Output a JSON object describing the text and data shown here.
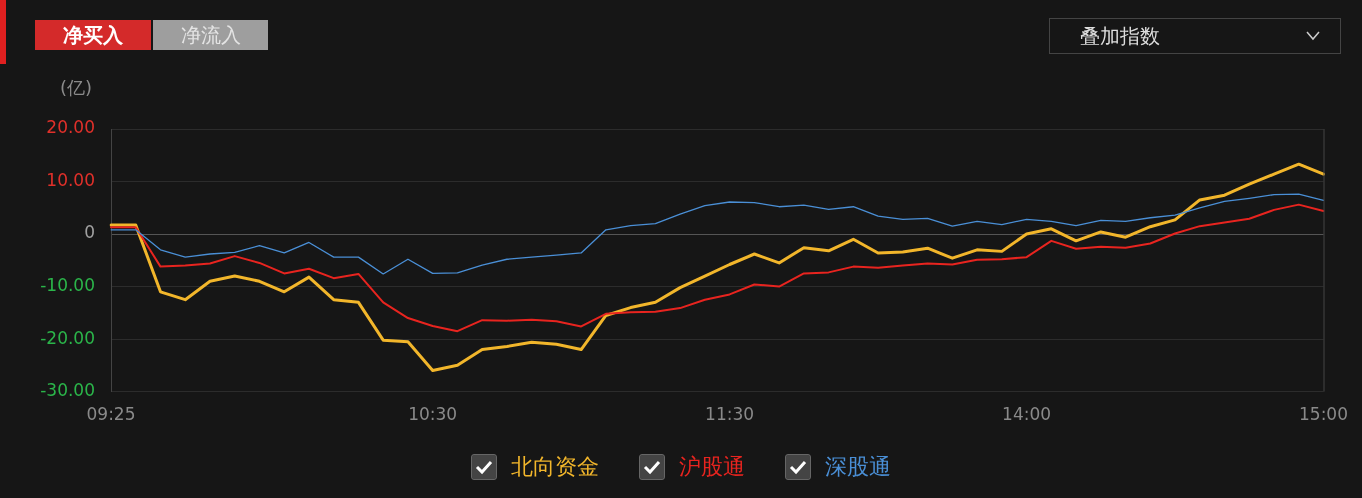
{
  "chart_data": {
    "type": "line",
    "ylabel": "(亿)",
    "annotations": [
      "净买入",
      "净流入",
      "叠加指数"
    ],
    "categories": [
      "09:25",
      null,
      null,
      null,
      null,
      null,
      null,
      null,
      null,
      null,
      null,
      null,
      null,
      "10:30",
      null,
      null,
      null,
      null,
      null,
      null,
      null,
      null,
      null,
      null,
      null,
      "11:30",
      null,
      null,
      null,
      null,
      null,
      null,
      null,
      null,
      null,
      null,
      null,
      "14:00",
      null,
      null,
      null,
      null,
      null,
      null,
      null,
      null,
      null,
      null,
      null,
      "15:00"
    ],
    "series": [
      {
        "name": "北向资金",
        "color": "#f2b62b",
        "values": [
          1.7,
          1.7,
          -11,
          -12.5,
          -9,
          -8,
          -9,
          -11,
          -8.2,
          -12.5,
          -13,
          -20.2,
          -20.5,
          -26,
          -25,
          -22,
          -21.4,
          -20.6,
          -21,
          -22,
          -15.5,
          -14,
          -13,
          -10.2,
          -8,
          -5.8,
          -3.8,
          -5.5,
          -2.6,
          -3.2,
          -1,
          -3.6,
          -3.4,
          -2.7,
          -4.6,
          -3,
          -3.3,
          0,
          1,
          -1.3,
          0.4,
          -0.6,
          1.4,
          2.7,
          6.5,
          7.4,
          9.5,
          11.4,
          13.3,
          11.4
        ]
      },
      {
        "name": "沪股通",
        "color": "#e8241f",
        "values": [
          1.3,
          1.3,
          -6.2,
          -6,
          -5.6,
          -4.2,
          -5.5,
          -7.5,
          -6.6,
          -8.4,
          -7.6,
          -13,
          -16,
          -17.5,
          -18.5,
          -16.4,
          -16.5,
          -16.3,
          -16.6,
          -17.6,
          -15.2,
          -14.9,
          -14.8,
          -14.1,
          -12.5,
          -11.5,
          -9.6,
          -10,
          -7.5,
          -7.3,
          -6.2,
          -6.4,
          -6,
          -5.6,
          -5.8,
          -4.9,
          -4.8,
          -4.4,
          -1.3,
          -2.8,
          -2.4,
          -2.6,
          -1.8,
          0.1,
          1.5,
          2.2,
          2.9,
          4.6,
          5.6,
          4.4
        ]
      },
      {
        "name": "深股通",
        "color": "#4a8fd6",
        "values": [
          0.8,
          0.8,
          -3,
          -4.4,
          -3.8,
          -3.5,
          -2.2,
          -3.6,
          -1.6,
          -4.4,
          -4.4,
          -7.6,
          -4.8,
          -7.5,
          -7.4,
          -5.9,
          -4.8,
          -4.4,
          -4,
          -3.6,
          0.8,
          1.6,
          2,
          3.8,
          5.4,
          6.1,
          6,
          5.2,
          5.5,
          4.7,
          5.2,
          3.4,
          2.8,
          3,
          1.5,
          2.4,
          1.8,
          2.8,
          2.4,
          1.6,
          2.6,
          2.4,
          3.1,
          3.6,
          5,
          6.2,
          6.8,
          7.5,
          7.6,
          6.4
        ]
      }
    ],
    "ylim": [
      -30,
      20
    ],
    "yticks": [
      {
        "value": -30,
        "label": "-30.00"
      },
      {
        "value": -20,
        "label": "-20.00"
      },
      {
        "value": -10,
        "label": "-10.00"
      },
      0,
      {
        "value": 10,
        "label": "10.00"
      },
      {
        "value": 20,
        "label": "20.00"
      }
    ],
    "grid": "y",
    "legend": "bottom",
    "marker": "none",
    "line_style": "solid"
  }
}
